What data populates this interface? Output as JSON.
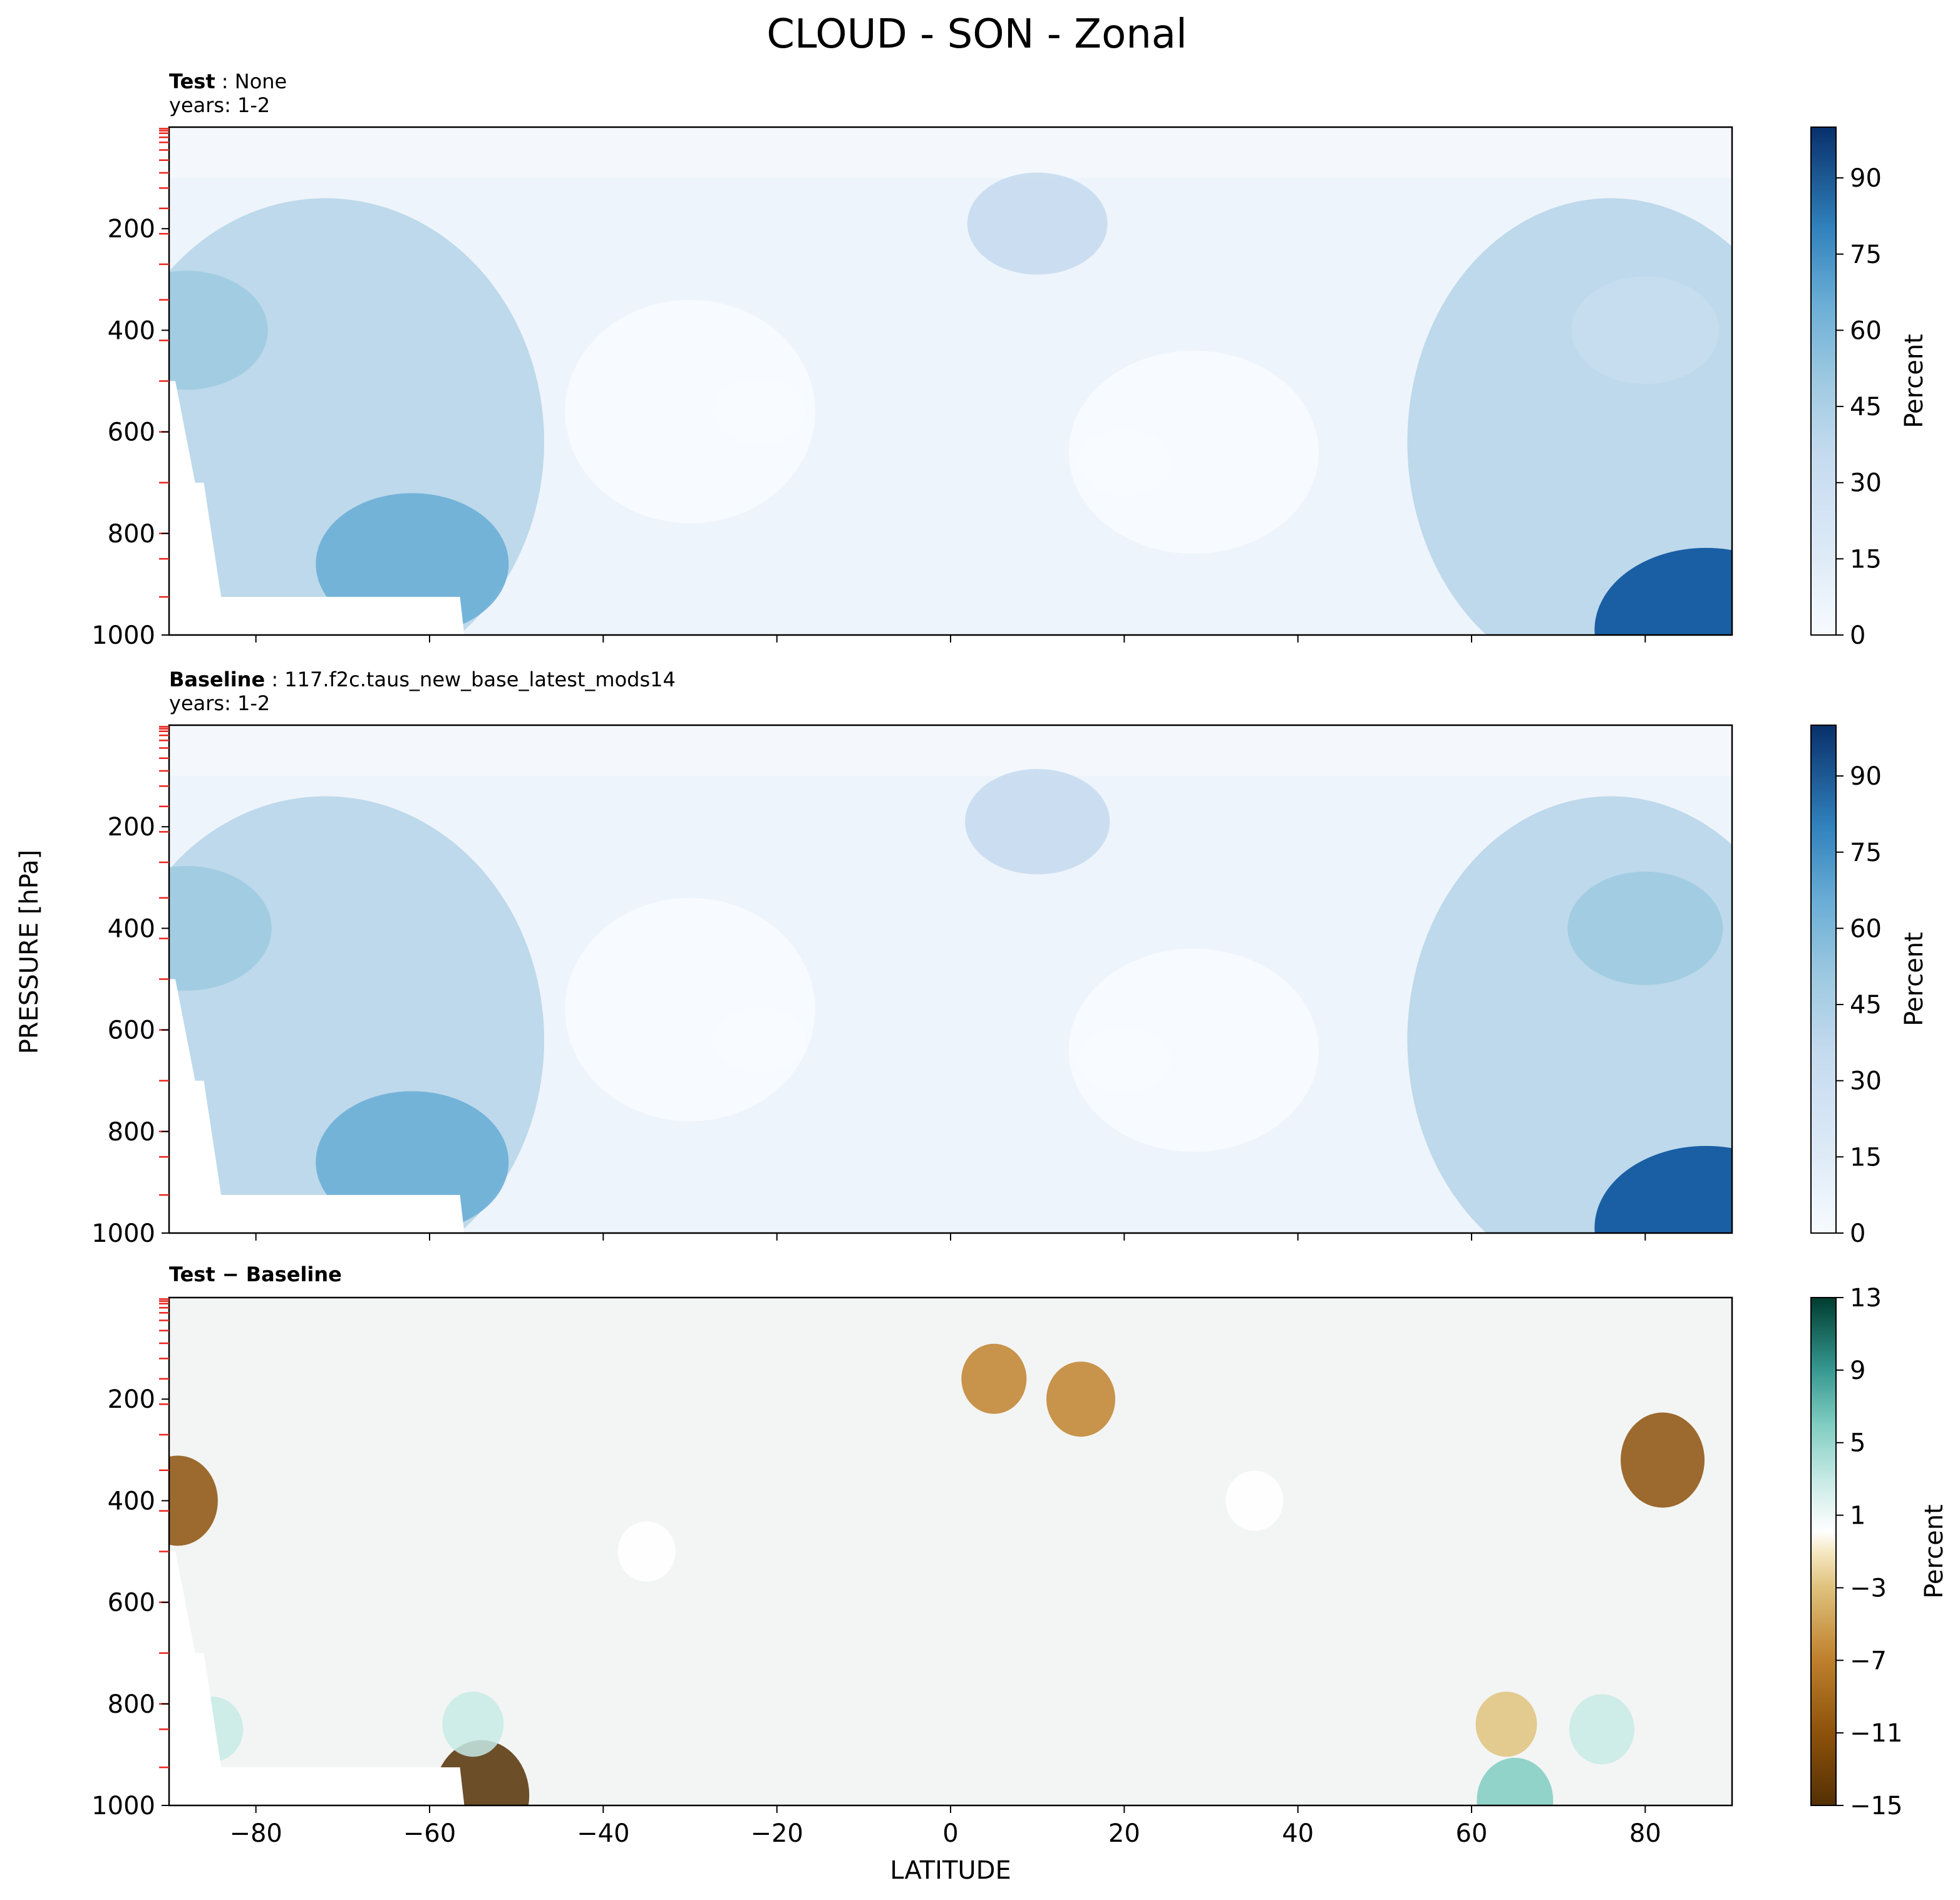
{
  "chart_data": {
    "type": "contour",
    "title": "CLOUD - SON - Zonal",
    "xlabel": "LATITUDE",
    "ylabel": "PRESSURE [hPa]",
    "xlim": [
      -90,
      90
    ],
    "ylim": [
      1000,
      0
    ],
    "x_ticks": [
      "−80",
      "−60",
      "−40",
      "−20",
      "0",
      "20",
      "40",
      "60",
      "80"
    ],
    "y_ticks": [
      "200",
      "400",
      "600",
      "800",
      "1000"
    ],
    "panels": [
      {
        "name": "test",
        "label_bold": "Test",
        "label_sep": " : ",
        "label_value": "None",
        "years": "years: 1-2",
        "colormap": "Blues",
        "colorbar_label": "Percent",
        "colorbar_ticks": [
          "0",
          "15",
          "30",
          "45",
          "60",
          "75",
          "90"
        ],
        "colorbar_range": [
          0,
          100
        ],
        "features": [
          {
            "lat": -62,
            "p": 860,
            "value": 70
          },
          {
            "lat": 87,
            "p": 990,
            "value": 90
          },
          {
            "lat": 10,
            "p": 190,
            "value": 35
          },
          {
            "lat": -88,
            "p": 400,
            "value": 50
          },
          {
            "lat": 80,
            "p": 400,
            "value": 40
          },
          {
            "lat": -22,
            "p": 560,
            "value": 4
          },
          {
            "lat": 20,
            "p": 660,
            "value": 4
          }
        ]
      },
      {
        "name": "baseline",
        "label_bold": "Baseline",
        "label_sep": " : ",
        "label_value": "117.f2c.taus_new_base_latest_mods14",
        "years": "years: 1-2",
        "colormap": "Blues",
        "colorbar_label": "Percent",
        "colorbar_ticks": [
          "0",
          "15",
          "30",
          "45",
          "60",
          "75",
          "90"
        ],
        "colorbar_range": [
          0,
          100
        ],
        "features": [
          {
            "lat": -62,
            "p": 860,
            "value": 70
          },
          {
            "lat": 87,
            "p": 990,
            "value": 90
          },
          {
            "lat": 10,
            "p": 190,
            "value": 38
          },
          {
            "lat": -88,
            "p": 400,
            "value": 55
          },
          {
            "lat": 80,
            "p": 400,
            "value": 45
          },
          {
            "lat": -22,
            "p": 620,
            "value": 4
          },
          {
            "lat": 20,
            "p": 660,
            "value": 4
          }
        ]
      },
      {
        "name": "difference",
        "label_bold": "Test",
        "label_sep": " − ",
        "label_value": "Baseline",
        "years": "",
        "colormap": "BrBG",
        "colorbar_label": "Percent",
        "colorbar_ticks": [
          "−15",
          "−11",
          "−7",
          "−3",
          "1",
          "5",
          "9",
          "13"
        ],
        "colorbar_range": [
          -15,
          13
        ],
        "features": [
          {
            "lat": -89,
            "p": 400,
            "value": -8
          },
          {
            "lat": 82,
            "p": 320,
            "value": -9
          },
          {
            "lat": 15,
            "p": 200,
            "value": -5
          },
          {
            "lat": 5,
            "p": 160,
            "value": -4
          },
          {
            "lat": 35,
            "p": 400,
            "value": 2
          },
          {
            "lat": -54,
            "p": 980,
            "value": -12
          },
          {
            "lat": 65,
            "p": 990,
            "value": 7
          },
          {
            "lat": 75,
            "p": 850,
            "value": 4
          },
          {
            "lat": -85,
            "p": 850,
            "value": 3
          },
          {
            "lat": -55,
            "p": 840,
            "value": 3
          },
          {
            "lat": -35,
            "p": 500,
            "value": 2
          },
          {
            "lat": 64,
            "p": 840,
            "value": -3
          }
        ]
      }
    ]
  }
}
